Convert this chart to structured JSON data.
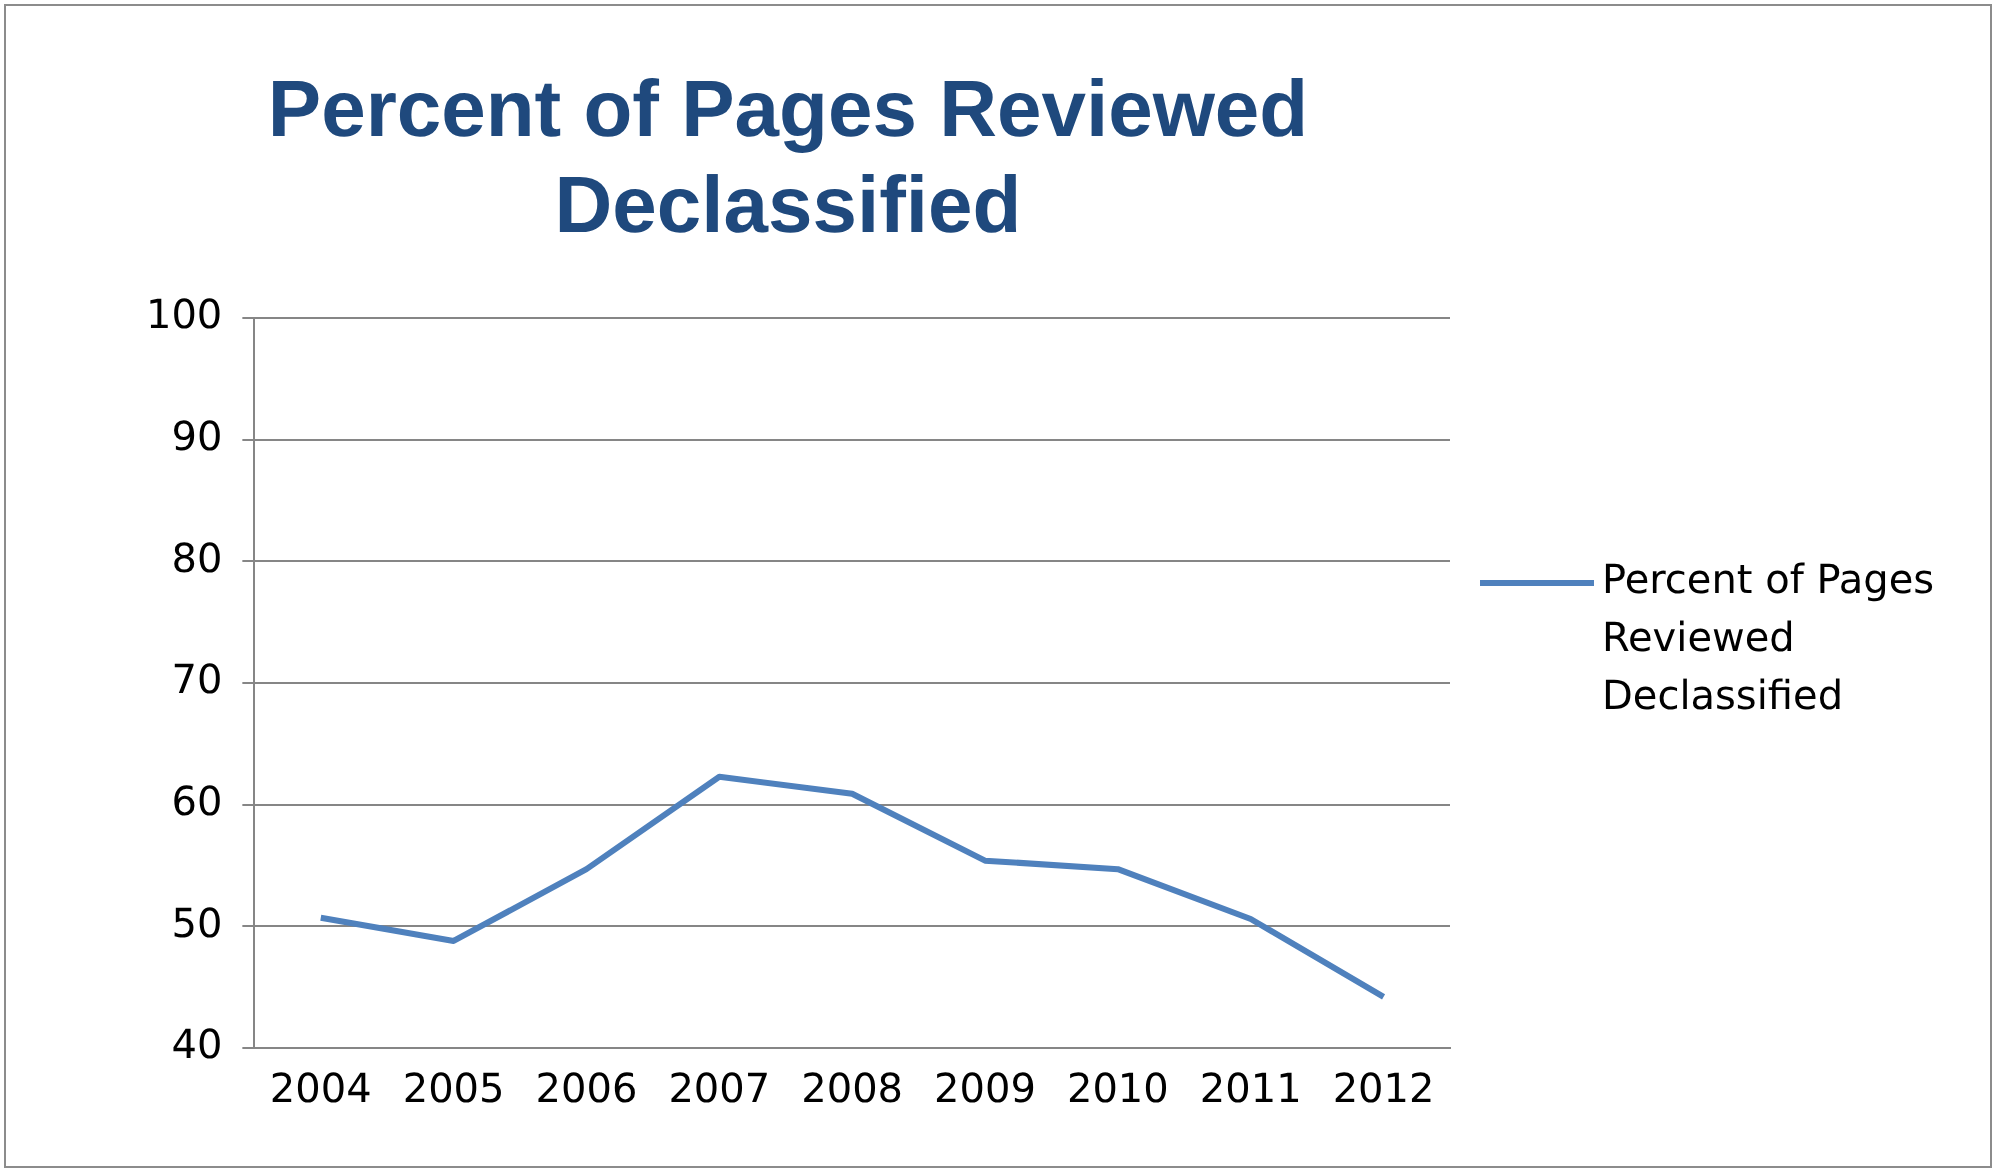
{
  "chart_data": {
    "type": "line",
    "title": "Percent of Pages Reviewed Declassified",
    "categories": [
      "2004",
      "2005",
      "2006",
      "2007",
      "2008",
      "2009",
      "2010",
      "2011",
      "2012"
    ],
    "series": [
      {
        "name": "Percent of Pages Reviewed Declassified",
        "color": "#4f81bd",
        "values": [
          50.7,
          48.8,
          54.7,
          62.3,
          60.9,
          55.4,
          54.7,
          50.6,
          44.2
        ]
      }
    ],
    "ylim": [
      40,
      100
    ],
    "yticks": [
      40,
      50,
      60,
      70,
      80,
      90,
      100
    ],
    "grid": "y",
    "legend": "right",
    "marker": "none"
  }
}
